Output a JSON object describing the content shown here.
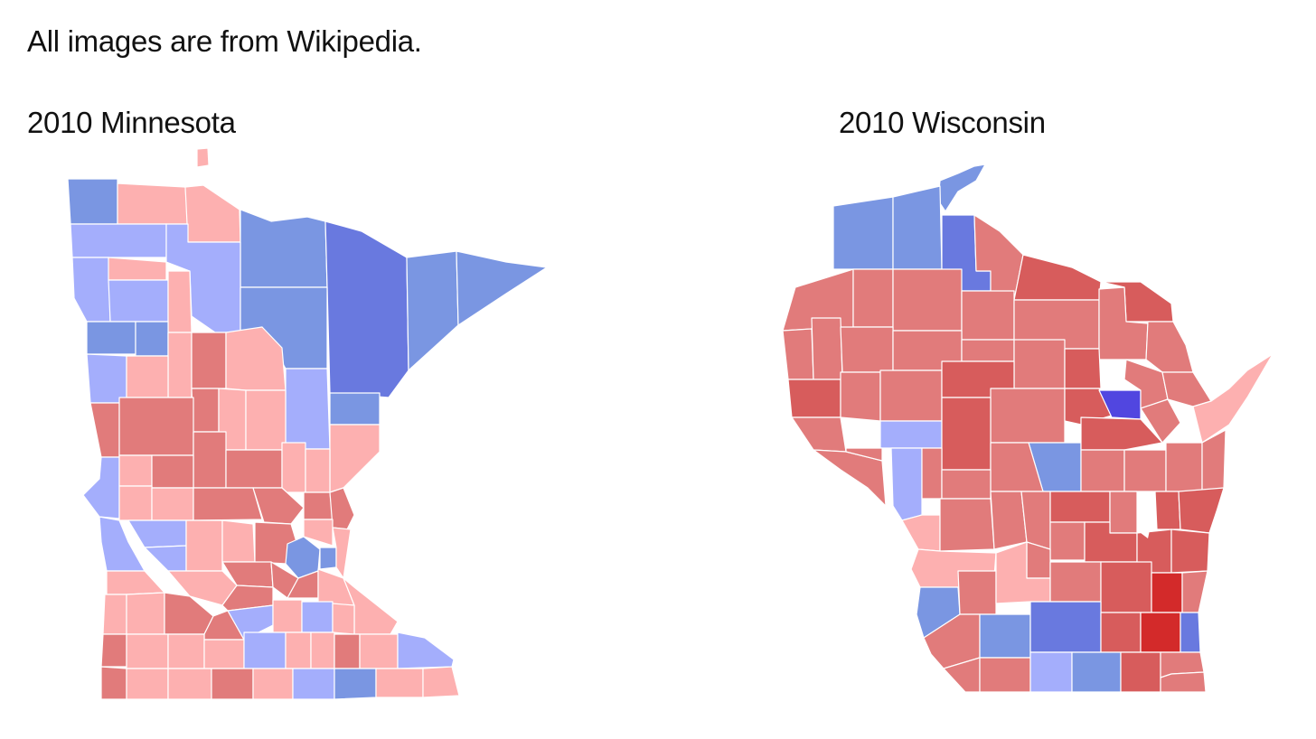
{
  "caption": "All images are from Wikipedia.",
  "maps": [
    {
      "id": "mn",
      "title": "2010 Minnesota"
    },
    {
      "id": "wi",
      "title": "2010 Wisconsin"
    }
  ],
  "palette": {
    "lightred": "#fdb0b0",
    "midred": "#e17b7b",
    "darkred": "#d75c5c",
    "red": "#d32a2a",
    "lightblue": "#a4aefc",
    "midblue": "#7a96e2",
    "darkblue": "#6979df",
    "violet": "#5146e0",
    "lake": "#ffffff"
  }
}
